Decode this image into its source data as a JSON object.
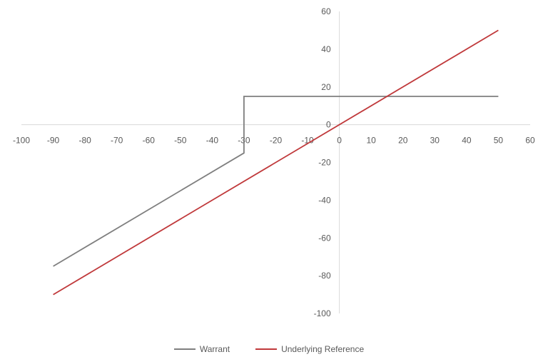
{
  "chart_data": {
    "type": "line",
    "title": "",
    "xlabel": "",
    "ylabel": "",
    "xlim": [
      -100,
      60
    ],
    "ylim": [
      -100,
      60
    ],
    "x_ticks": [
      "-100",
      "-90",
      "-80",
      "-70",
      "-60",
      "-50",
      "-40",
      "-30",
      "-20",
      "-10",
      "0",
      "10",
      "20",
      "30",
      "40",
      "50",
      "60"
    ],
    "y_ticks": [
      "60",
      "40",
      "20",
      "0",
      "-20",
      "-40",
      "-60",
      "-80",
      "-100"
    ],
    "grid": false,
    "legend_position": "bottom",
    "series": [
      {
        "name": "Warrant",
        "color": "#7f7f7f",
        "points": [
          [
            -90,
            -75
          ],
          [
            -30,
            -15
          ],
          [
            -30,
            15
          ],
          [
            50,
            15
          ]
        ]
      },
      {
        "name": "Underlying Reference",
        "color": "#c0393b",
        "points": [
          [
            -90,
            -90
          ],
          [
            50,
            50
          ]
        ]
      }
    ]
  }
}
